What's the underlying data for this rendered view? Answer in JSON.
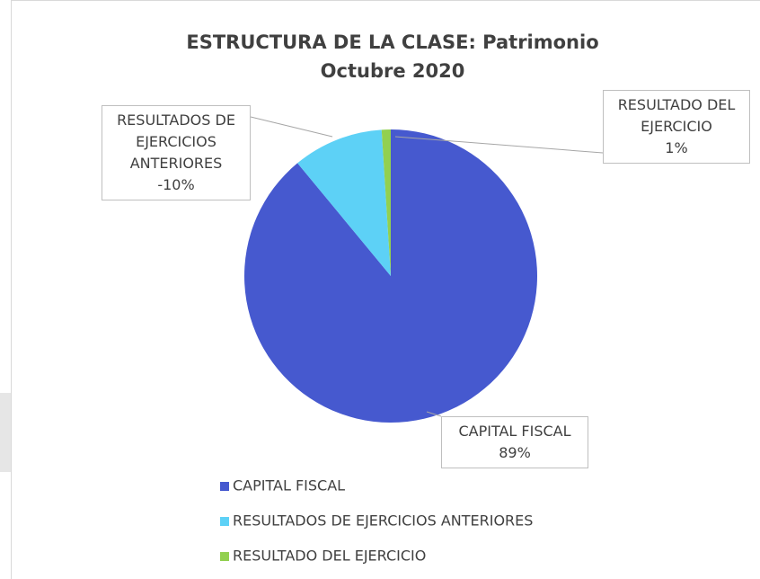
{
  "chart_data": {
    "type": "pie",
    "title": "ESTRUCTURA DE LA CLASE: Patrimonio",
    "subtitle": "Octubre 2020",
    "categories": [
      "CAPITAL FISCAL",
      "RESULTADOS DE EJERCICIOS ANTERIORES",
      "RESULTADO DEL EJERCICIO"
    ],
    "values": [
      89,
      -10,
      1
    ],
    "value_labels": [
      "89%",
      "-10%",
      "1%"
    ],
    "colors": [
      "#4659cf",
      "#5dd1f6",
      "#92d050"
    ],
    "legend": "bottom-left"
  }
}
